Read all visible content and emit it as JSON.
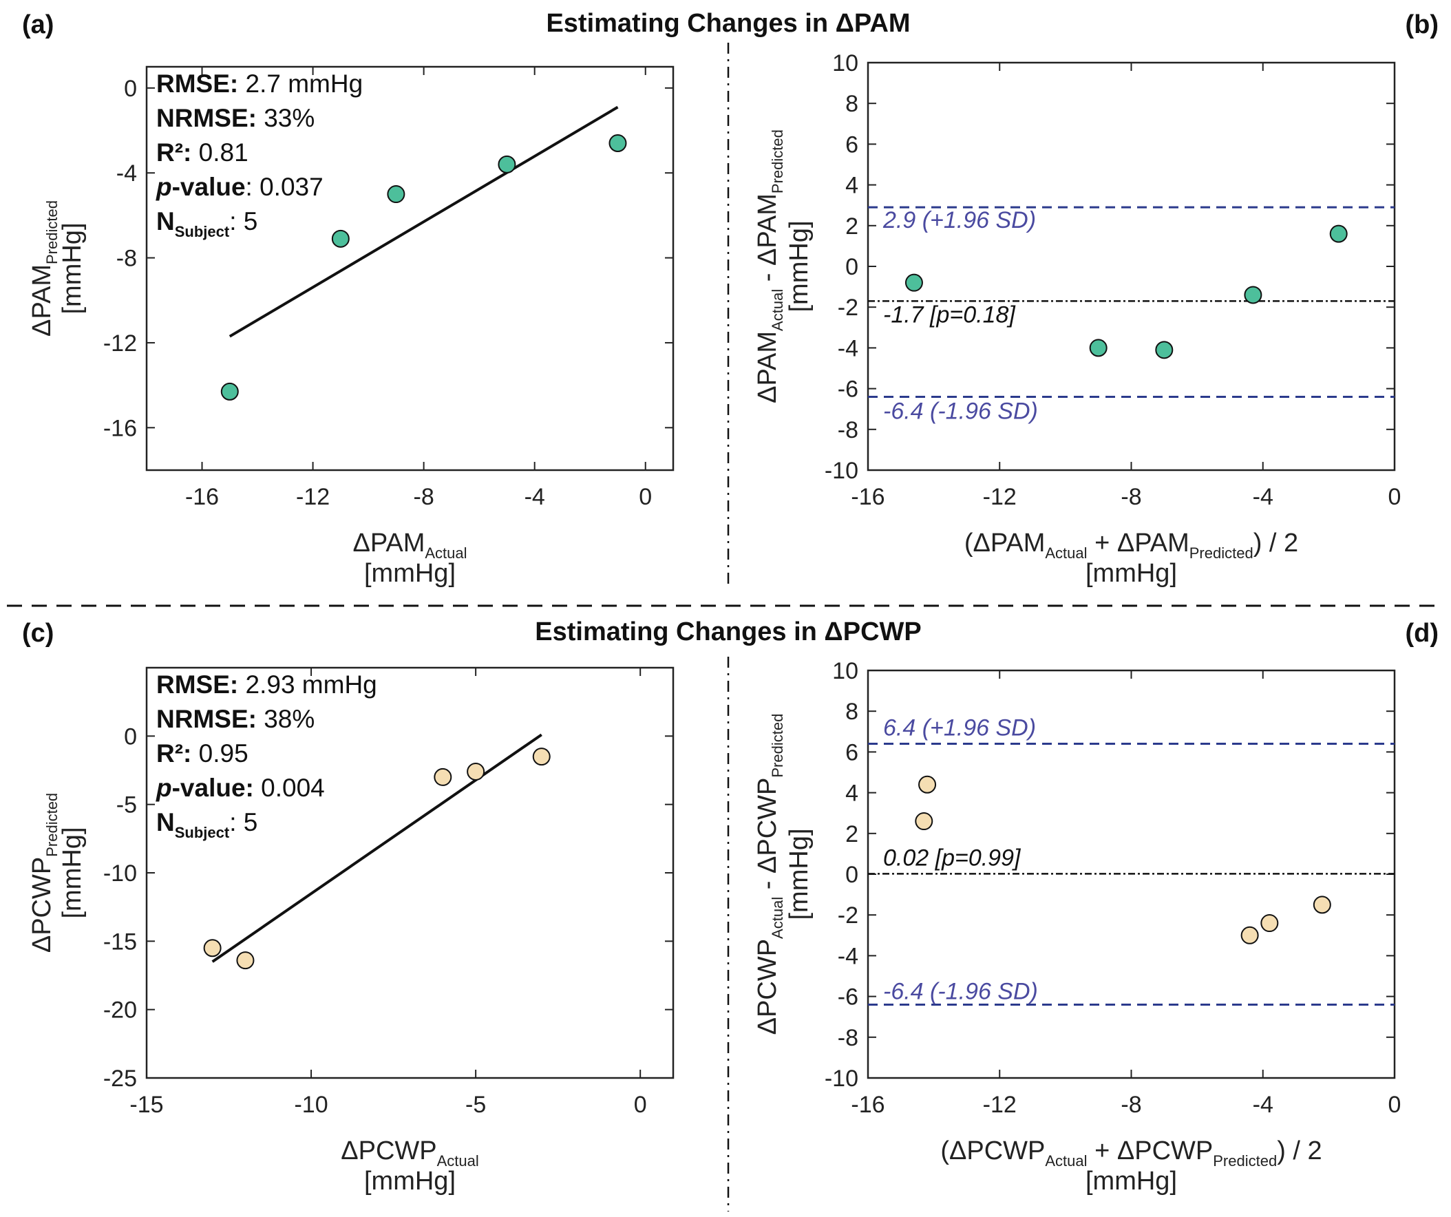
{
  "figure": {
    "panel_labels": [
      "(a)",
      "(b)",
      "(c)",
      "(d)"
    ],
    "top_title": "Estimating Changes in ΔPAM",
    "bottom_title": "Estimating Changes in ΔPCWP"
  },
  "colors": {
    "pam_marker": "#4dbf9b",
    "pcwp_marker": "#f5deb3",
    "loa_line": "#2b3a8c",
    "loa_text": "#4a4aa0",
    "mean_line": "#111111"
  },
  "chart_data": [
    {
      "id": "a",
      "type": "scatter",
      "xlabel": "ΔPAM",
      "xlabel_sub": "Actual",
      "xlabel_unit": "[mmHg]",
      "ylabel": "ΔPAM",
      "ylabel_sub": "Predicted",
      "ylabel_unit": "[mmHg]",
      "xlim": [
        -18,
        1
      ],
      "ylim": [
        -18,
        1
      ],
      "xticks": [
        -16,
        -12,
        -8,
        -4,
        0
      ],
      "yticks": [
        0,
        -4,
        -8,
        -12,
        -16
      ],
      "points": [
        {
          "x": -15,
          "y": -14.3
        },
        {
          "x": -11,
          "y": -7.1
        },
        {
          "x": -9,
          "y": -5.0
        },
        {
          "x": -5,
          "y": -3.6
        },
        {
          "x": -1,
          "y": -2.6
        }
      ],
      "fit_line": [
        [
          -15,
          -11.7
        ],
        [
          -1,
          -0.9
        ]
      ],
      "stats": [
        {
          "label": "RMSE:",
          "value": " 2.7 mmHg",
          "italic": false
        },
        {
          "label": "NRMSE:",
          "value": " 33%",
          "italic": false
        },
        {
          "label": "R²:",
          "value": " 0.81",
          "italic": false
        },
        {
          "label": "p",
          "label_rest": "-value",
          "value": ": 0.037",
          "italic": true
        },
        {
          "label": "N",
          "label_sub": "Subject",
          "value": ": 5",
          "italic": false
        }
      ]
    },
    {
      "id": "b",
      "type": "scatter",
      "xlabel_parts": [
        "(ΔPAM",
        "Actual",
        " + ΔPAM",
        "Predicted",
        ") / 2"
      ],
      "xlabel_unit": "[mmHg]",
      "ylabel_parts": [
        "ΔPAM",
        "Actual",
        " - ΔPAM",
        "Predicted"
      ],
      "ylabel_unit": "[mmHg]",
      "xlim": [
        -16,
        0
      ],
      "ylim": [
        -10,
        10
      ],
      "xticks": [
        -16,
        -12,
        -8,
        -4,
        0
      ],
      "yticks": [
        10,
        8,
        6,
        4,
        2,
        0,
        -2,
        -4,
        -6,
        -8,
        -10
      ],
      "points": [
        {
          "x": -14.6,
          "y": -0.8
        },
        {
          "x": -9.0,
          "y": -4.0
        },
        {
          "x": -7.0,
          "y": -4.1
        },
        {
          "x": -4.3,
          "y": -1.4
        },
        {
          "x": -1.7,
          "y": 1.6
        }
      ],
      "upper_loa": 2.9,
      "upper_loa_label": "2.9 (+1.96 SD)",
      "mean": -1.7,
      "mean_label": "-1.7 [p=0.18]",
      "lower_loa": -6.4,
      "lower_loa_label": "-6.4 (-1.96 SD)"
    },
    {
      "id": "c",
      "type": "scatter",
      "xlabel": "ΔPCWP",
      "xlabel_sub": "Actual",
      "xlabel_unit": "[mmHg]",
      "ylabel": "ΔPCWP",
      "ylabel_sub": "Predicted",
      "ylabel_unit": "[mmHg]",
      "xlim": [
        -15,
        1
      ],
      "ylim": [
        -25,
        5
      ],
      "xticks": [
        -15,
        -10,
        -5,
        0
      ],
      "yticks": [
        0,
        -5,
        -10,
        -15,
        -20,
        -25
      ],
      "points": [
        {
          "x": -13,
          "y": -15.5
        },
        {
          "x": -12,
          "y": -16.4
        },
        {
          "x": -6,
          "y": -3.0
        },
        {
          "x": -5,
          "y": -2.6
        },
        {
          "x": -3,
          "y": -1.5
        }
      ],
      "fit_line": [
        [
          -13,
          -16.5
        ],
        [
          -3,
          0.1
        ]
      ],
      "stats": [
        {
          "label": "RMSE:",
          "value": " 2.93 mmHg",
          "italic": false
        },
        {
          "label": "NRMSE:",
          "value": " 38%",
          "italic": false
        },
        {
          "label": "R²:",
          "value": " 0.95",
          "italic": false
        },
        {
          "label": "p",
          "label_rest": "-value:",
          "value": "  0.004",
          "italic": true
        },
        {
          "label": "N",
          "label_sub": "Subject",
          "value": ": 5",
          "italic": false
        }
      ]
    },
    {
      "id": "d",
      "type": "scatter",
      "xlabel_parts": [
        "(ΔPCWP",
        "Actual",
        " + ΔPCWP",
        "Predicted",
        ") / 2"
      ],
      "xlabel_unit": "[mmHg]",
      "ylabel_parts": [
        "ΔPCWP",
        "Actual",
        " - ΔPCWP",
        "Predicted"
      ],
      "ylabel_unit": "[mmHg]",
      "xlim": [
        -16,
        0
      ],
      "ylim": [
        -10,
        10
      ],
      "xticks": [
        -16,
        -12,
        -8,
        -4,
        0
      ],
      "yticks": [
        10,
        8,
        6,
        4,
        2,
        0,
        -2,
        -4,
        -6,
        -8,
        -10
      ],
      "points": [
        {
          "x": -14.2,
          "y": 4.4
        },
        {
          "x": -14.3,
          "y": 2.6
        },
        {
          "x": -4.4,
          "y": -3.0
        },
        {
          "x": -3.8,
          "y": -2.4
        },
        {
          "x": -2.2,
          "y": -1.5
        }
      ],
      "upper_loa": 6.4,
      "upper_loa_label": "6.4 (+1.96 SD)",
      "mean": 0.02,
      "mean_label": "0.02 [p=0.99]",
      "lower_loa": -6.4,
      "lower_loa_label": "-6.4 (-1.96 SD)"
    }
  ]
}
